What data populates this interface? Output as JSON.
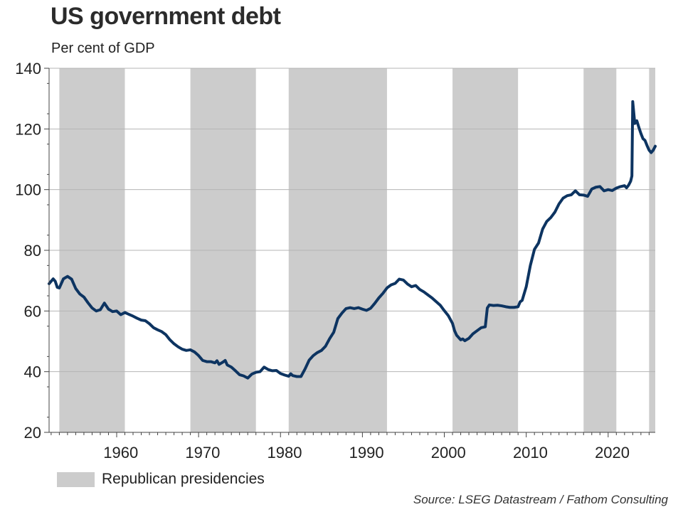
{
  "chart_data": {
    "type": "line",
    "title": "US government debt",
    "subtitle": "Per cent of GDP",
    "xlabel": "",
    "ylabel": "",
    "xlim": [
      1951.75,
      2025.75
    ],
    "ylim": [
      20,
      140
    ],
    "yticks": [
      20,
      40,
      60,
      80,
      100,
      120,
      140
    ],
    "xticks": [
      1960,
      1970,
      1980,
      1990,
      2000,
      2010,
      2020
    ],
    "grid": true,
    "legend_position": "bottom-left",
    "legend": [
      {
        "label": "Republican presidencies",
        "color": "#cccccc"
      }
    ],
    "shaded_periods": [
      {
        "start": 1953.0,
        "end": 1961.0
      },
      {
        "start": 1969.0,
        "end": 1977.0
      },
      {
        "start": 1981.0,
        "end": 1993.0
      },
      {
        "start": 2001.0,
        "end": 2009.0
      },
      {
        "start": 2017.0,
        "end": 2021.0
      },
      {
        "start": 2025.0,
        "end": 2025.75
      }
    ],
    "series": [
      {
        "color": "#0d3461",
        "points": [
          [
            1951.75,
            69.0
          ],
          [
            1952.25,
            70.6
          ],
          [
            1952.5,
            69.8
          ],
          [
            1952.75,
            67.8
          ],
          [
            1953.0,
            67.6
          ],
          [
            1953.5,
            70.6
          ],
          [
            1954.0,
            71.4
          ],
          [
            1954.5,
            70.5
          ],
          [
            1955.0,
            67.4
          ],
          [
            1955.5,
            65.6
          ],
          [
            1956.0,
            64.6
          ],
          [
            1956.5,
            62.7
          ],
          [
            1957.0,
            61.0
          ],
          [
            1957.5,
            60.0
          ],
          [
            1958.0,
            60.4
          ],
          [
            1958.5,
            62.6
          ],
          [
            1959.0,
            60.6
          ],
          [
            1959.5,
            59.8
          ],
          [
            1960.0,
            60.0
          ],
          [
            1960.5,
            58.8
          ],
          [
            1961.0,
            59.5
          ],
          [
            1961.5,
            58.9
          ],
          [
            1962.0,
            58.3
          ],
          [
            1962.5,
            57.6
          ],
          [
            1963.0,
            57.0
          ],
          [
            1963.5,
            56.8
          ],
          [
            1964.0,
            55.8
          ],
          [
            1964.5,
            54.5
          ],
          [
            1965.0,
            53.8
          ],
          [
            1965.5,
            53.2
          ],
          [
            1966.0,
            52.2
          ],
          [
            1966.5,
            50.5
          ],
          [
            1967.0,
            49.2
          ],
          [
            1967.5,
            48.2
          ],
          [
            1968.0,
            47.4
          ],
          [
            1968.5,
            47.0
          ],
          [
            1969.0,
            47.2
          ],
          [
            1969.5,
            46.5
          ],
          [
            1970.0,
            45.3
          ],
          [
            1970.5,
            43.7
          ],
          [
            1971.0,
            43.3
          ],
          [
            1971.5,
            43.3
          ],
          [
            1972.0,
            42.9
          ],
          [
            1972.25,
            43.6
          ],
          [
            1972.5,
            42.4
          ],
          [
            1973.0,
            43.2
          ],
          [
            1973.25,
            43.7
          ],
          [
            1973.5,
            42.2
          ],
          [
            1974.0,
            41.5
          ],
          [
            1974.5,
            40.3
          ],
          [
            1975.0,
            39.0
          ],
          [
            1975.5,
            38.6
          ],
          [
            1976.0,
            37.9
          ],
          [
            1976.5,
            39.2
          ],
          [
            1977.0,
            39.8
          ],
          [
            1977.5,
            40.0
          ],
          [
            1978.0,
            41.5
          ],
          [
            1978.5,
            40.7
          ],
          [
            1979.0,
            40.3
          ],
          [
            1979.5,
            40.4
          ],
          [
            1980.0,
            39.4
          ],
          [
            1980.5,
            38.9
          ],
          [
            1981.0,
            38.5
          ],
          [
            1981.25,
            39.3
          ],
          [
            1981.5,
            38.7
          ],
          [
            1982.0,
            38.4
          ],
          [
            1982.5,
            38.4
          ],
          [
            1983.0,
            40.9
          ],
          [
            1983.5,
            43.8
          ],
          [
            1984.0,
            45.3
          ],
          [
            1984.5,
            46.3
          ],
          [
            1985.0,
            47.0
          ],
          [
            1985.5,
            48.4
          ],
          [
            1986.0,
            50.9
          ],
          [
            1986.5,
            53.0
          ],
          [
            1987.0,
            57.5
          ],
          [
            1987.5,
            59.3
          ],
          [
            1988.0,
            60.8
          ],
          [
            1988.5,
            61.1
          ],
          [
            1989.0,
            60.8
          ],
          [
            1989.5,
            61.1
          ],
          [
            1990.0,
            60.6
          ],
          [
            1990.5,
            60.2
          ],
          [
            1991.0,
            60.9
          ],
          [
            1991.5,
            62.5
          ],
          [
            1992.0,
            64.3
          ],
          [
            1992.5,
            65.8
          ],
          [
            1993.0,
            67.6
          ],
          [
            1993.5,
            68.6
          ],
          [
            1994.0,
            69.1
          ],
          [
            1994.5,
            70.5
          ],
          [
            1995.0,
            70.2
          ],
          [
            1995.5,
            68.9
          ],
          [
            1996.0,
            68.0
          ],
          [
            1996.5,
            68.4
          ],
          [
            1997.0,
            67.1
          ],
          [
            1997.5,
            66.3
          ],
          [
            1998.0,
            65.3
          ],
          [
            1998.5,
            64.3
          ],
          [
            1999.0,
            63.1
          ],
          [
            1999.5,
            61.9
          ],
          [
            2000.0,
            60.1
          ],
          [
            2000.5,
            58.4
          ],
          [
            2001.0,
            55.9
          ],
          [
            2001.25,
            53.5
          ],
          [
            2001.5,
            52.0
          ],
          [
            2002.0,
            50.5
          ],
          [
            2002.25,
            50.8
          ],
          [
            2002.5,
            50.2
          ],
          [
            2003.0,
            51.0
          ],
          [
            2003.5,
            52.5
          ],
          [
            2004.0,
            53.5
          ],
          [
            2004.5,
            54.5
          ],
          [
            2005.0,
            54.8
          ],
          [
            2005.25,
            61.0
          ],
          [
            2005.5,
            62.0
          ],
          [
            2006.0,
            61.8
          ],
          [
            2006.5,
            61.9
          ],
          [
            2007.0,
            61.7
          ],
          [
            2007.5,
            61.4
          ],
          [
            2008.0,
            61.2
          ],
          [
            2008.5,
            61.2
          ],
          [
            2009.0,
            61.4
          ],
          [
            2009.25,
            63.0
          ],
          [
            2009.5,
            63.5
          ],
          [
            2010.0,
            68.0
          ],
          [
            2010.5,
            75.0
          ],
          [
            2011.0,
            80.3
          ],
          [
            2011.5,
            82.4
          ],
          [
            2012.0,
            87.0
          ],
          [
            2012.5,
            89.5
          ],
          [
            2013.0,
            90.8
          ],
          [
            2013.5,
            92.6
          ],
          [
            2014.0,
            95.3
          ],
          [
            2014.5,
            97.2
          ],
          [
            2015.0,
            98.0
          ],
          [
            2015.5,
            98.3
          ],
          [
            2016.0,
            99.6
          ],
          [
            2016.5,
            98.3
          ],
          [
            2017.0,
            98.2
          ],
          [
            2017.5,
            97.8
          ],
          [
            2018.0,
            100.2
          ],
          [
            2018.5,
            100.8
          ],
          [
            2019.0,
            101.0
          ],
          [
            2019.5,
            99.6
          ],
          [
            2020.0,
            100.0
          ],
          [
            2020.5,
            99.7
          ],
          [
            2021.0,
            100.5
          ],
          [
            2021.5,
            101.0
          ],
          [
            2022.0,
            101.3
          ],
          [
            2022.25,
            100.6
          ],
          [
            2022.5,
            101.5
          ],
          [
            2022.75,
            102.8
          ],
          [
            2022.9,
            104.5
          ],
          [
            2023.0,
            129.0
          ],
          [
            2023.25,
            121.8
          ],
          [
            2023.5,
            122.7
          ],
          [
            2023.75,
            120.5
          ],
          [
            2024.0,
            118.5
          ],
          [
            2024.25,
            116.8
          ],
          [
            2024.5,
            116.2
          ],
          [
            2024.75,
            114.5
          ],
          [
            2025.0,
            113.0
          ],
          [
            2025.25,
            112.2
          ],
          [
            2025.5,
            113.0
          ],
          [
            2025.75,
            114.3
          ]
        ]
      }
    ]
  },
  "legend": {
    "label": "Republican presidencies"
  },
  "source": "Source: LSEG Datastream / Fathom Consulting"
}
